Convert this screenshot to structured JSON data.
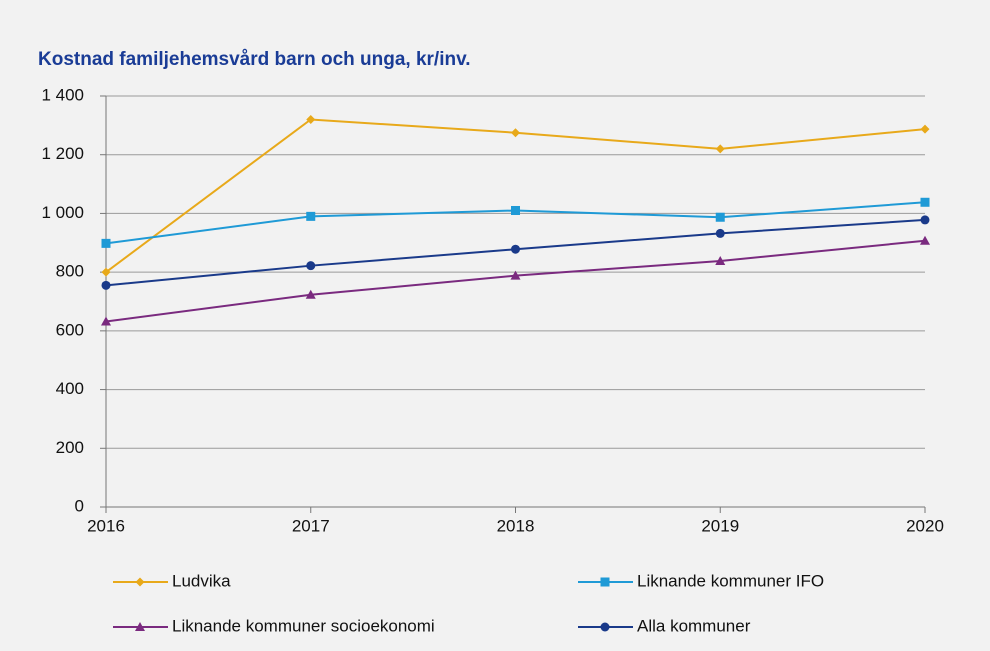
{
  "chart_data": {
    "type": "line",
    "title": "Kostnad familjehemsvård barn och unga, kr/inv.",
    "categories": [
      "2016",
      "2017",
      "2018",
      "2019",
      "2020"
    ],
    "series": [
      {
        "name": "Ludvika",
        "color": "#e8a91a",
        "marker": "diamond",
        "values": [
          800,
          1320,
          1275,
          1220,
          1287
        ]
      },
      {
        "name": "Liknande kommuner IFO",
        "color": "#1f9ad6",
        "marker": "square",
        "values": [
          898,
          990,
          1010,
          987,
          1038
        ]
      },
      {
        "name": "Liknande kommuner socioekonomi",
        "color": "#7a2a7f",
        "marker": "triangle",
        "values": [
          632,
          723,
          788,
          838,
          907
        ]
      },
      {
        "name": "Alla kommuner",
        "color": "#1a3a8a",
        "marker": "circle",
        "values": [
          755,
          822,
          878,
          932,
          978
        ]
      }
    ],
    "ylim": [
      0,
      1400
    ],
    "yticks": [
      0,
      200,
      400,
      600,
      800,
      {
        "value": 1000,
        "label": "1 000"
      },
      {
        "value": 1200,
        "label": "1 200"
      },
      {
        "value": 1400,
        "label": "1 400"
      }
    ],
    "grid": true,
    "legend": "bottom"
  }
}
